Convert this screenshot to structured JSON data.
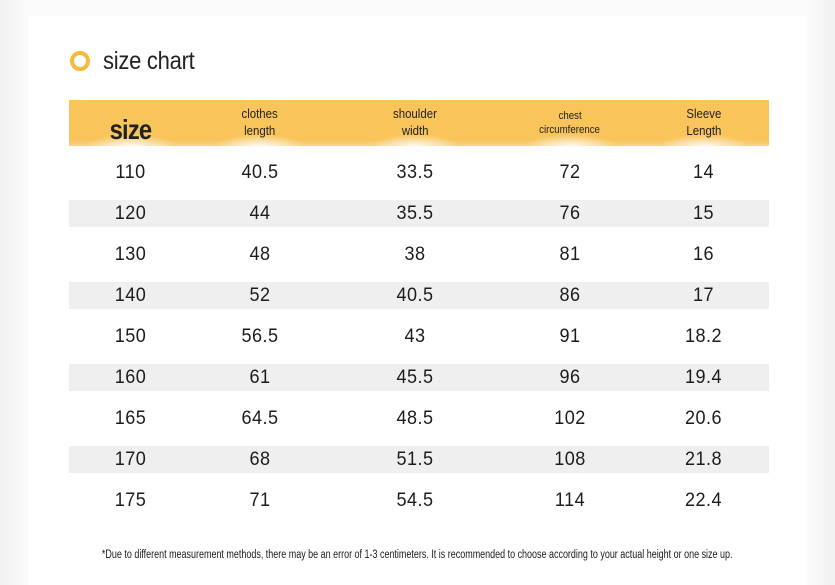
{
  "title": "size chart",
  "colors": {
    "accent": "#f5b93c",
    "header_bg": "#f9c45a",
    "row_shade": "#efefef"
  },
  "icons": {
    "title_icon": "ring-icon"
  },
  "table": {
    "headers": [
      {
        "lines": [
          "size"
        ]
      },
      {
        "lines": [
          "clothes",
          "length"
        ]
      },
      {
        "lines": [
          "shoulder",
          "width"
        ]
      },
      {
        "lines": [
          "chest",
          "circumference"
        ]
      },
      {
        "lines": [
          "Sleeve",
          "Length"
        ]
      }
    ],
    "rows": [
      [
        "110",
        "40.5",
        "33.5",
        "72",
        "14"
      ],
      [
        "120",
        "44",
        "35.5",
        "76",
        "15"
      ],
      [
        "130",
        "48",
        "38",
        "81",
        "16"
      ],
      [
        "140",
        "52",
        "40.5",
        "86",
        "17"
      ],
      [
        "150",
        "56.5",
        "43",
        "91",
        "18.2"
      ],
      [
        "160",
        "61",
        "45.5",
        "96",
        "19.4"
      ],
      [
        "165",
        "64.5",
        "48.5",
        "102",
        "20.6"
      ],
      [
        "170",
        "68",
        "51.5",
        "108",
        "21.8"
      ],
      [
        "175",
        "71",
        "54.5",
        "114",
        "22.4"
      ]
    ]
  },
  "footnote": "*Due to different measurement methods, there may be an error of 1-3 centimeters. It is recommended to choose according to your actual height or one size up."
}
